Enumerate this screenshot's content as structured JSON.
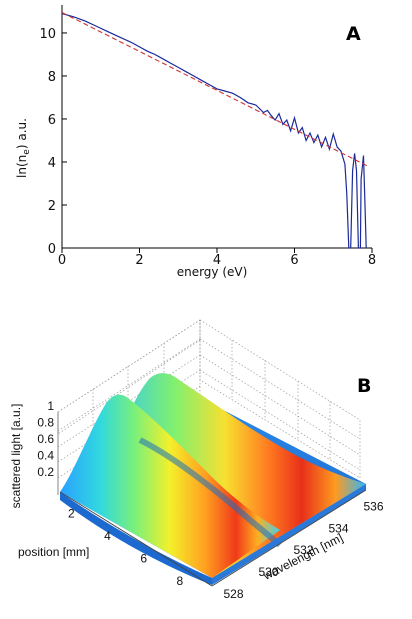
{
  "chart_data": [
    {
      "type": "line",
      "panel": "A",
      "xlabel": "energy (eV)",
      "ylabel": "ln(n",
      "ylabel_sub": "e",
      "ylabel_tail": ") a.u.",
      "xlim": [
        0,
        8
      ],
      "ylim": [
        0,
        11.3
      ],
      "xticks": [
        0,
        2,
        4,
        6,
        8
      ],
      "yticks": [
        0,
        2,
        4,
        6,
        8,
        10
      ],
      "series": [
        {
          "style": "solid",
          "color": "#1a2a9a",
          "points": [
            [
              0,
              10.9
            ],
            [
              0.3,
              10.75
            ],
            [
              0.6,
              10.55
            ],
            [
              0.9,
              10.3
            ],
            [
              1.2,
              10.05
            ],
            [
              1.5,
              9.8
            ],
            [
              1.8,
              9.55
            ],
            [
              2.0,
              9.35
            ],
            [
              2.2,
              9.15
            ],
            [
              2.4,
              9.0
            ],
            [
              2.6,
              8.8
            ],
            [
              2.8,
              8.6
            ],
            [
              3.0,
              8.4
            ],
            [
              3.2,
              8.2
            ],
            [
              3.4,
              8.0
            ],
            [
              3.6,
              7.8
            ],
            [
              3.8,
              7.6
            ],
            [
              4.0,
              7.4
            ],
            [
              4.2,
              7.3
            ],
            [
              4.4,
              7.2
            ],
            [
              4.6,
              7.0
            ],
            [
              4.8,
              6.75
            ],
            [
              5.0,
              6.65
            ],
            [
              5.2,
              6.3
            ],
            [
              5.3,
              6.4
            ],
            [
              5.4,
              6.15
            ],
            [
              5.5,
              5.95
            ],
            [
              5.6,
              6.25
            ],
            [
              5.7,
              5.75
            ],
            [
              5.8,
              5.95
            ],
            [
              5.9,
              5.45
            ],
            [
              6.0,
              6.05
            ],
            [
              6.1,
              5.35
            ],
            [
              6.2,
              5.6
            ],
            [
              6.3,
              5.0
            ],
            [
              6.4,
              5.35
            ],
            [
              6.5,
              4.9
            ],
            [
              6.6,
              5.25
            ],
            [
              6.7,
              4.7
            ],
            [
              6.8,
              5.15
            ],
            [
              6.9,
              4.6
            ],
            [
              7.0,
              5.3
            ],
            [
              7.1,
              4.7
            ],
            [
              7.2,
              4.5
            ],
            [
              7.3,
              3.9
            ],
            [
              7.35,
              2.5
            ],
            [
              7.4,
              0.0
            ],
            [
              7.45,
              0.0
            ],
            [
              7.5,
              3.6
            ],
            [
              7.55,
              4.4
            ],
            [
              7.6,
              3.6
            ],
            [
              7.65,
              0.0
            ],
            [
              7.7,
              0.0
            ],
            [
              7.72,
              3.2
            ],
            [
              7.78,
              4.3
            ],
            [
              7.82,
              2.0
            ],
            [
              7.85,
              0.0
            ]
          ]
        },
        {
          "style": "dashed",
          "color": "#d03030",
          "points": [
            [
              0,
              10.95
            ],
            [
              7.9,
              3.8
            ]
          ]
        }
      ]
    },
    {
      "type": "surface",
      "panel": "B",
      "zlabel": "scattered light [a.u.]",
      "xlabel": "position [mm]",
      "ylabel": "wavelength [nm]",
      "zticks": [
        "0.2",
        "0.4",
        "0.6",
        "0.8",
        "1"
      ],
      "xticks": [
        "2",
        "4",
        "6",
        "8"
      ],
      "yticks": [
        "528",
        "530",
        "532",
        "534",
        "536"
      ],
      "colormap": "jet",
      "ridges": [
        {
          "name": "",
          "peak": 1.0
        },
        {
          "name": "",
          "peak": 0.95
        }
      ]
    }
  ]
}
